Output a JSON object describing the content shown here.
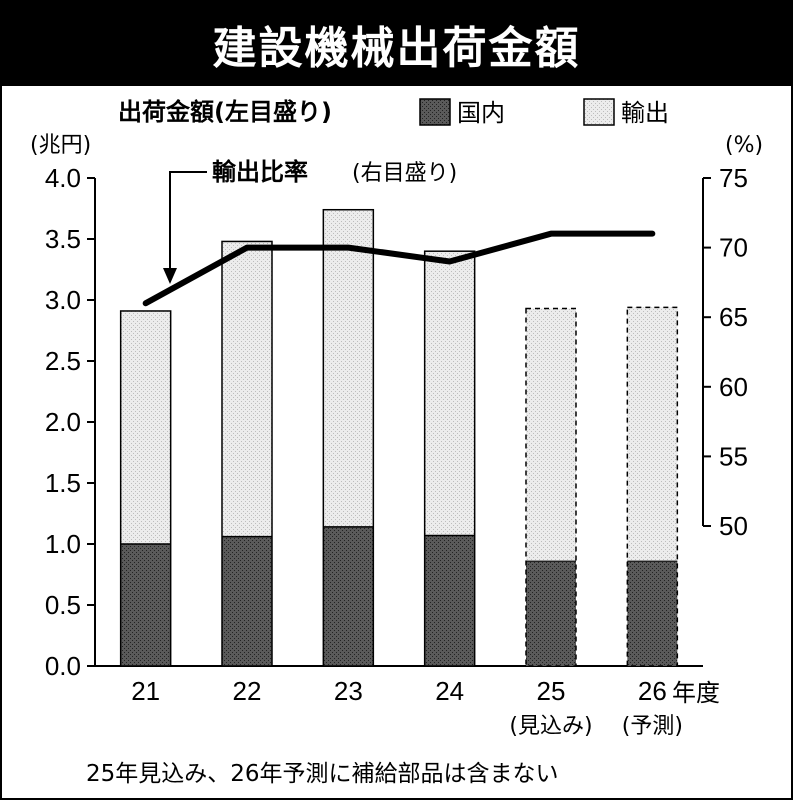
{
  "title": "建設機械出荷金額",
  "legend": {
    "left_axis_caption": "出荷金額(左目盛り)",
    "domestic": "国内",
    "export": "輸出"
  },
  "line_label": {
    "name": "輸出比率",
    "note": "(右目盛り)"
  },
  "units": {
    "left": "(兆円)",
    "right": "(%)",
    "x": "年度"
  },
  "footnote": "25年見込み、26年予測に補給部品は含まない",
  "colors": {
    "domestic": "#555555",
    "export": "#e6e6e6",
    "line": "#000000"
  },
  "chart_data": {
    "type": "bar",
    "stacked": true,
    "categories": [
      "21",
      "22",
      "23",
      "24",
      "25",
      "26"
    ],
    "category_notes": [
      "",
      "",
      "",
      "",
      "(見込み)",
      "(予測)"
    ],
    "series": [
      {
        "name": "国内",
        "values": [
          1.0,
          1.06,
          1.14,
          1.07,
          0.86,
          0.86
        ]
      },
      {
        "name": "輸出",
        "values": [
          1.91,
          2.42,
          2.6,
          2.33,
          2.07,
          2.08
        ]
      }
    ],
    "estimated_categories": [
      "25",
      "26"
    ],
    "line_series": {
      "name": "輸出比率",
      "axis": "right",
      "values": [
        66,
        70,
        70,
        69,
        71,
        71
      ]
    },
    "ylim": [
      0,
      4.0
    ],
    "yticks": [
      "0.0",
      "0.5",
      "1.0",
      "1.5",
      "2.0",
      "2.5",
      "3.0",
      "3.5",
      "4.0"
    ],
    "y2lim": [
      50,
      75
    ],
    "y2ticks": [
      "50",
      "55",
      "60",
      "65",
      "70",
      "75"
    ],
    "ylabel": "(兆円)",
    "y2label": "(%)",
    "xlabel": "年度",
    "grid": false
  }
}
